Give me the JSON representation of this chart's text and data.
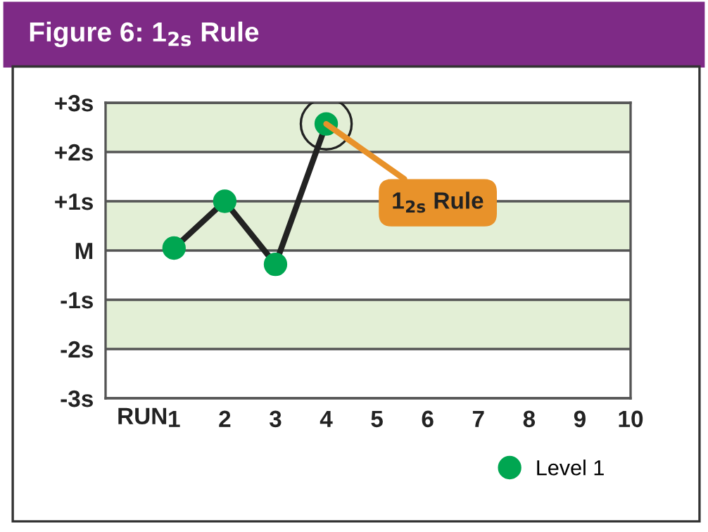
{
  "chart_data": {
    "type": "line",
    "title": "Figure 6: 1$_{2s}$ Rule",
    "xlabel": "RUN",
    "x": [
      1,
      2,
      3,
      4
    ],
    "series": [
      {
        "name": "Level 1",
        "color": "#00a651",
        "values": [
          0.05,
          1.0,
          -0.28,
          2.57
        ]
      }
    ],
    "xlim": [
      -0.35,
      10
    ],
    "xticks": [
      1,
      2,
      3,
      4,
      5,
      6,
      7,
      8,
      9,
      10
    ],
    "ylim": [
      -3,
      3
    ],
    "yticks": [
      {
        "value": -3,
        "label": "-3s"
      },
      {
        "value": -2,
        "label": "-2s"
      },
      {
        "value": -1,
        "label": "-1s"
      },
      {
        "value": 0,
        "label": "M"
      },
      {
        "value": 1,
        "label": "+1s"
      },
      {
        "value": 2,
        "label": "+2s"
      },
      {
        "value": 3,
        "label": "+3s"
      }
    ],
    "bands": [
      {
        "axis": "y",
        "from": 2,
        "to": 3,
        "color": "#e3efd6"
      },
      {
        "axis": "y",
        "from": 0,
        "to": 1,
        "color": "#e3efd6"
      },
      {
        "axis": "y",
        "from": -2,
        "to": -1,
        "color": "#e3efd6"
      }
    ],
    "annotations": [
      {
        "text": "1$_{2s}$ Rule",
        "x": 4,
        "y": 2.57
      }
    ],
    "grid": "y",
    "marker": "circle",
    "line_style": "solid",
    "legend": "bottom right"
  }
}
